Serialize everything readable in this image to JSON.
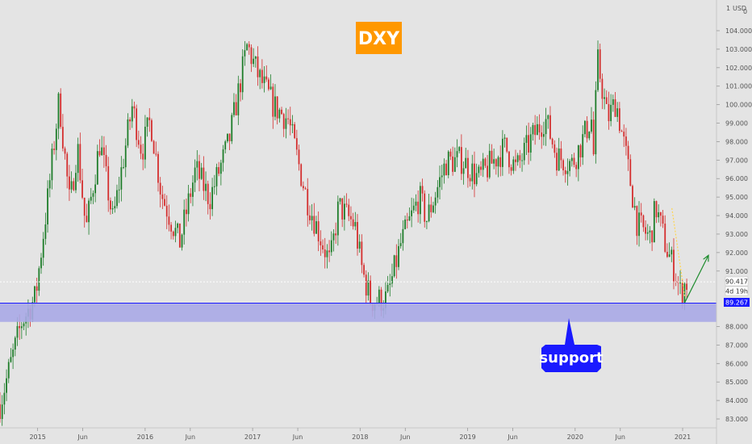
{
  "chart_data": {
    "type": "candlestick",
    "title": "DXY",
    "currency": "USD",
    "y_axis_label_top": "1",
    "y_axis_label_right": "0",
    "ylim": [
      82.6,
      105.2
    ],
    "yticks": [
      {
        "value": 104,
        "label": "104.000"
      },
      {
        "value": 103,
        "label": "103.000"
      },
      {
        "value": 102,
        "label": "102.000"
      },
      {
        "value": 101,
        "label": "101.000"
      },
      {
        "value": 100,
        "label": "100.000"
      },
      {
        "value": 99,
        "label": "99.000"
      },
      {
        "value": 98,
        "label": "98.000"
      },
      {
        "value": 97,
        "label": "97.000"
      },
      {
        "value": 96,
        "label": "96.000"
      },
      {
        "value": 95,
        "label": "95.000"
      },
      {
        "value": 94,
        "label": "94.000"
      },
      {
        "value": 93,
        "label": "93.000"
      },
      {
        "value": 92,
        "label": "92.000"
      },
      {
        "value": 91,
        "label": "91.000"
      },
      {
        "value": 88,
        "label": "88.000"
      },
      {
        "value": 87,
        "label": "87.000"
      },
      {
        "value": 86,
        "label": "86.000"
      },
      {
        "value": 85,
        "label": "85.000"
      },
      {
        "value": 84,
        "label": "84.000"
      },
      {
        "value": 83,
        "label": "83.000"
      }
    ],
    "xlim": [
      2014.65,
      2021.3
    ],
    "xticks": [
      {
        "value": 2015.0,
        "label": "2015"
      },
      {
        "value": 2015.42,
        "label": "Jun"
      },
      {
        "value": 2016.0,
        "label": "2016"
      },
      {
        "value": 2016.42,
        "label": "Jun"
      },
      {
        "value": 2017.0,
        "label": "2017"
      },
      {
        "value": 2017.42,
        "label": "Jun"
      },
      {
        "value": 2018.0,
        "label": "2018"
      },
      {
        "value": 2018.42,
        "label": "Jun"
      },
      {
        "value": 2019.0,
        "label": "2019"
      },
      {
        "value": 2019.42,
        "label": "Jun"
      },
      {
        "value": 2020.0,
        "label": "2020"
      },
      {
        "value": 2020.42,
        "label": "Jun"
      },
      {
        "value": 2021.0,
        "label": "2021"
      }
    ],
    "support_zone": {
      "low": 88.25,
      "high": 89.267,
      "label": "support"
    },
    "support_line": {
      "value": 89.267,
      "label": "89.267",
      "color": "#1a1aff"
    },
    "last_price": {
      "value": 90.417,
      "label": "90.417",
      "countdown": "4d 19h"
    },
    "forecast_arrow": {
      "from": [
        2021.02,
        89.3
      ],
      "to": [
        2021.24,
        91.85
      ],
      "color": "#1e8c2e"
    },
    "pivots": [
      [
        2014.65,
        83.8
      ],
      [
        2014.85,
        88.2
      ],
      [
        2014.98,
        89.6
      ],
      [
        2015.1,
        95.2
      ],
      [
        2015.2,
        100.3
      ],
      [
        2015.3,
        94.5
      ],
      [
        2015.37,
        97.8
      ],
      [
        2015.45,
        93.2
      ],
      [
        2015.58,
        98.0
      ],
      [
        2015.7,
        93.7
      ],
      [
        2015.88,
        99.9
      ],
      [
        2015.97,
        97.5
      ],
      [
        2016.05,
        99.2
      ],
      [
        2016.15,
        95.2
      ],
      [
        2016.32,
        92.5
      ],
      [
        2016.47,
        96.5
      ],
      [
        2016.6,
        94.9
      ],
      [
        2016.78,
        98.0
      ],
      [
        2016.95,
        103.2
      ],
      [
        2017.05,
        101.6
      ],
      [
        2017.2,
        99.9
      ],
      [
        2017.33,
        99.2
      ],
      [
        2017.5,
        95.0
      ],
      [
        2017.65,
        92.5
      ],
      [
        2017.72,
        91.4
      ],
      [
        2017.8,
        94.5
      ],
      [
        2017.95,
        93.5
      ],
      [
        2018.02,
        91.0
      ],
      [
        2018.1,
        89.4
      ],
      [
        2018.25,
        89.5
      ],
      [
        2018.38,
        92.5
      ],
      [
        2018.55,
        95.0
      ],
      [
        2018.62,
        93.8
      ],
      [
        2018.8,
        96.9
      ],
      [
        2018.95,
        97.0
      ],
      [
        2019.1,
        96.0
      ],
      [
        2019.35,
        97.7
      ],
      [
        2019.45,
        96.5
      ],
      [
        2019.6,
        98.2
      ],
      [
        2019.72,
        99.3
      ],
      [
        2019.83,
        97.2
      ],
      [
        2019.97,
        96.8
      ],
      [
        2020.05,
        97.8
      ],
      [
        2020.15,
        99.3
      ],
      [
        2020.18,
        96.5
      ],
      [
        2020.2,
        102.7
      ],
      [
        2020.3,
        99.2
      ],
      [
        2020.38,
        100.2
      ],
      [
        2020.48,
        97.0
      ],
      [
        2020.58,
        93.5
      ],
      [
        2020.7,
        92.8
      ],
      [
        2020.75,
        94.5
      ],
      [
        2020.85,
        92.2
      ],
      [
        2020.93,
        91.0
      ],
      [
        2020.98,
        89.8
      ],
      [
        2021.03,
        90.4
      ]
    ]
  }
}
